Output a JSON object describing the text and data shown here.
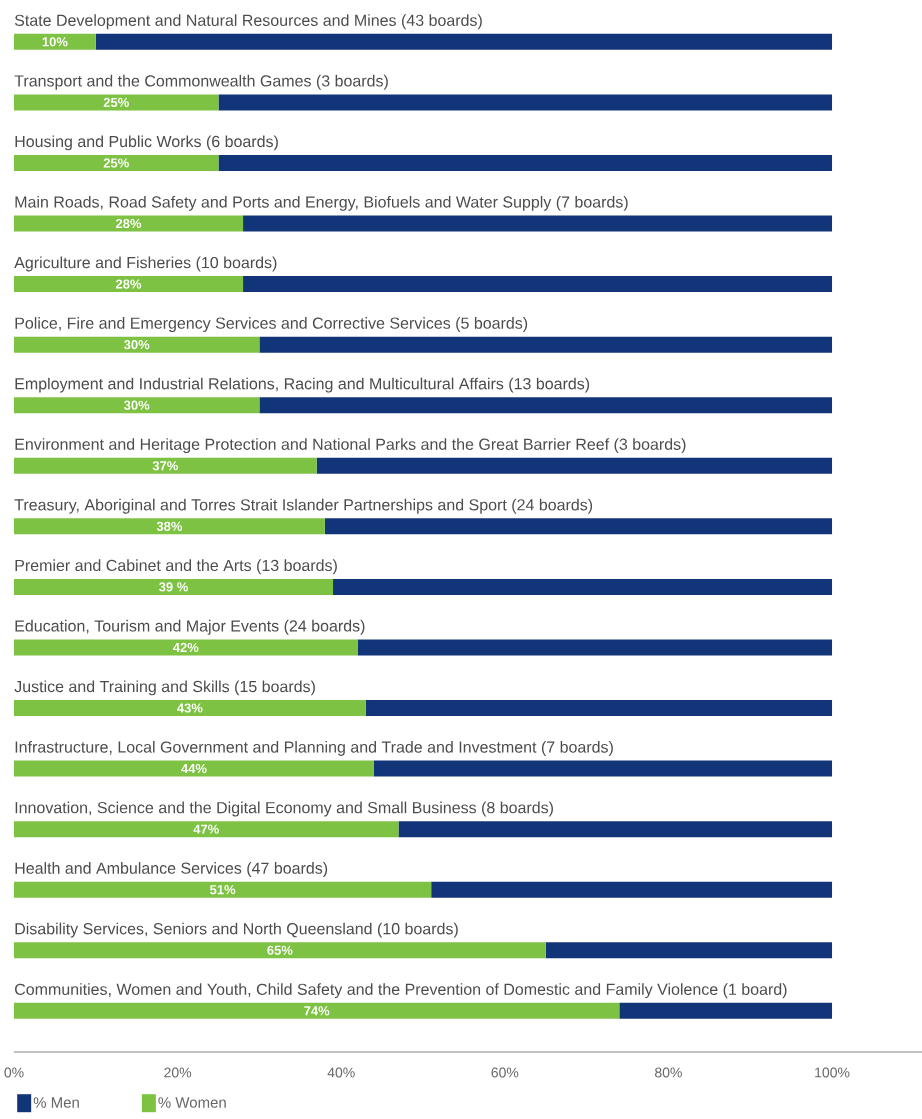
{
  "chart_data": {
    "type": "bar",
    "orientation": "horizontal",
    "stacked": true,
    "legend": "bottom",
    "categories": [
      "State Development and Natural Resources and Mines (43 boards)",
      "Transport and the Commonwealth Games (3 boards)",
      "Housing and Public Works (6 boards)",
      "Main Roads, Road Safety and Ports and Energy, Biofuels and Water Supply (7 boards)",
      "Agriculture and Fisheries (10 boards)",
      "Police, Fire and Emergency Services and Corrective Services (5 boards)",
      "Employment and Industrial Relations, Racing and Multicultural Affairs (13 boards)",
      "Environment and Heritage Protection and National Parks and the Great Barrier Reef (3 boards)",
      "Treasury, Aboriginal and Torres Strait Islander Partnerships and Sport (24 boards)",
      "Premier and Cabinet and the Arts (13 boards)",
      "Education,  Tourism and Major Events (24 boards)",
      "Justice and Training and Skills (15 boards)",
      "Infrastructure, Local Government and Planning and Trade and Investment (7 boards)",
      "Innovation, Science and the Digital Economy and Small Business (8 boards)",
      "Health and Ambulance Services (47 boards)",
      "Disability Services, Seniors and North Queensland (10 boards)",
      "Communities, Women and Youth, Child Safety and the Prevention of Domestic and Family Violence (1 board)"
    ],
    "series": [
      {
        "name": "% Women",
        "color": "#7dc242",
        "values": [
          10,
          25,
          25,
          28,
          28,
          30,
          30,
          37,
          38,
          39,
          42,
          43,
          44,
          47,
          51,
          65,
          74
        ],
        "value_labels": [
          "10%",
          "25%",
          "25%",
          "28%",
          "28%",
          "30%",
          "30%",
          "37%",
          "38%",
          "39 %",
          "42%",
          "43%",
          "44%",
          "47%",
          "51%",
          "65%",
          "74%"
        ]
      },
      {
        "name": "% Men",
        "color": "#12357a",
        "values": [
          90,
          75,
          75,
          72,
          72,
          70,
          70,
          63,
          62,
          61,
          58,
          57,
          56,
          53,
          49,
          35,
          26
        ]
      }
    ],
    "xlim": [
      0,
      111
    ],
    "xticks": [
      {
        "value": 0,
        "label": "0%"
      },
      {
        "value": 20,
        "label": "20%"
      },
      {
        "value": 40,
        "label": "40%"
      },
      {
        "value": 60,
        "label": "60%"
      },
      {
        "value": 80,
        "label": "80%"
      },
      {
        "value": 100,
        "label": "100%"
      }
    ]
  }
}
